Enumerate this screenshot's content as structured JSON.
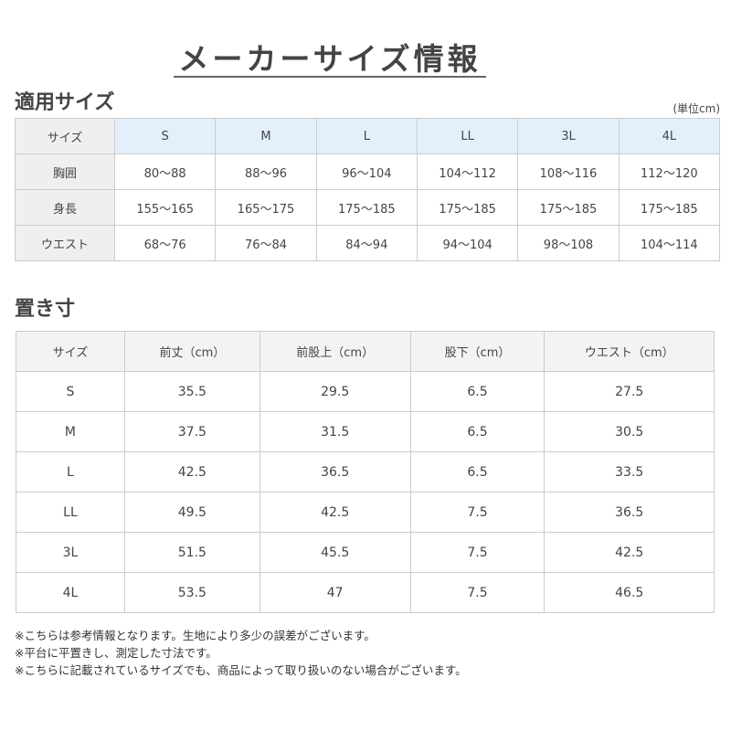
{
  "title": "メーカーサイズ情報",
  "fit": {
    "heading": "適用サイズ",
    "unit": "(単位cm)",
    "header": [
      "サイズ",
      "S",
      "M",
      "L",
      "LL",
      "3L",
      "4L"
    ],
    "rows": [
      [
        "胸囲",
        "80〜88",
        "88〜96",
        "96〜104",
        "104〜112",
        "108〜116",
        "112〜120"
      ],
      [
        "身長",
        "155〜165",
        "165〜175",
        "175〜185",
        "175〜185",
        "175〜185",
        "175〜185"
      ],
      [
        "ウエスト",
        "68〜76",
        "76〜84",
        "84〜94",
        "94〜104",
        "98〜108",
        "104〜114"
      ]
    ]
  },
  "flat": {
    "heading": "置き寸",
    "header": [
      "サイズ",
      "前丈（cm）",
      "前股上（cm）",
      "股下（cm）",
      "ウエスト（cm）"
    ],
    "rows": [
      [
        "S",
        "35.5",
        "29.5",
        "6.5",
        "27.5"
      ],
      [
        "M",
        "37.5",
        "31.5",
        "6.5",
        "30.5"
      ],
      [
        "L",
        "42.5",
        "36.5",
        "6.5",
        "33.5"
      ],
      [
        "LL",
        "49.5",
        "42.5",
        "7.5",
        "36.5"
      ],
      [
        "3L",
        "51.5",
        "45.5",
        "7.5",
        "42.5"
      ],
      [
        "4L",
        "53.5",
        "47",
        "7.5",
        "46.5"
      ]
    ]
  },
  "notes": [
    "※こちらは参考情報となります。生地により多少の誤差がございます。",
    "※平台に平置きし、測定した寸法です。",
    "※こちらに記載されているサイズでも、商品によって取り扱いのない場合がございます。"
  ]
}
